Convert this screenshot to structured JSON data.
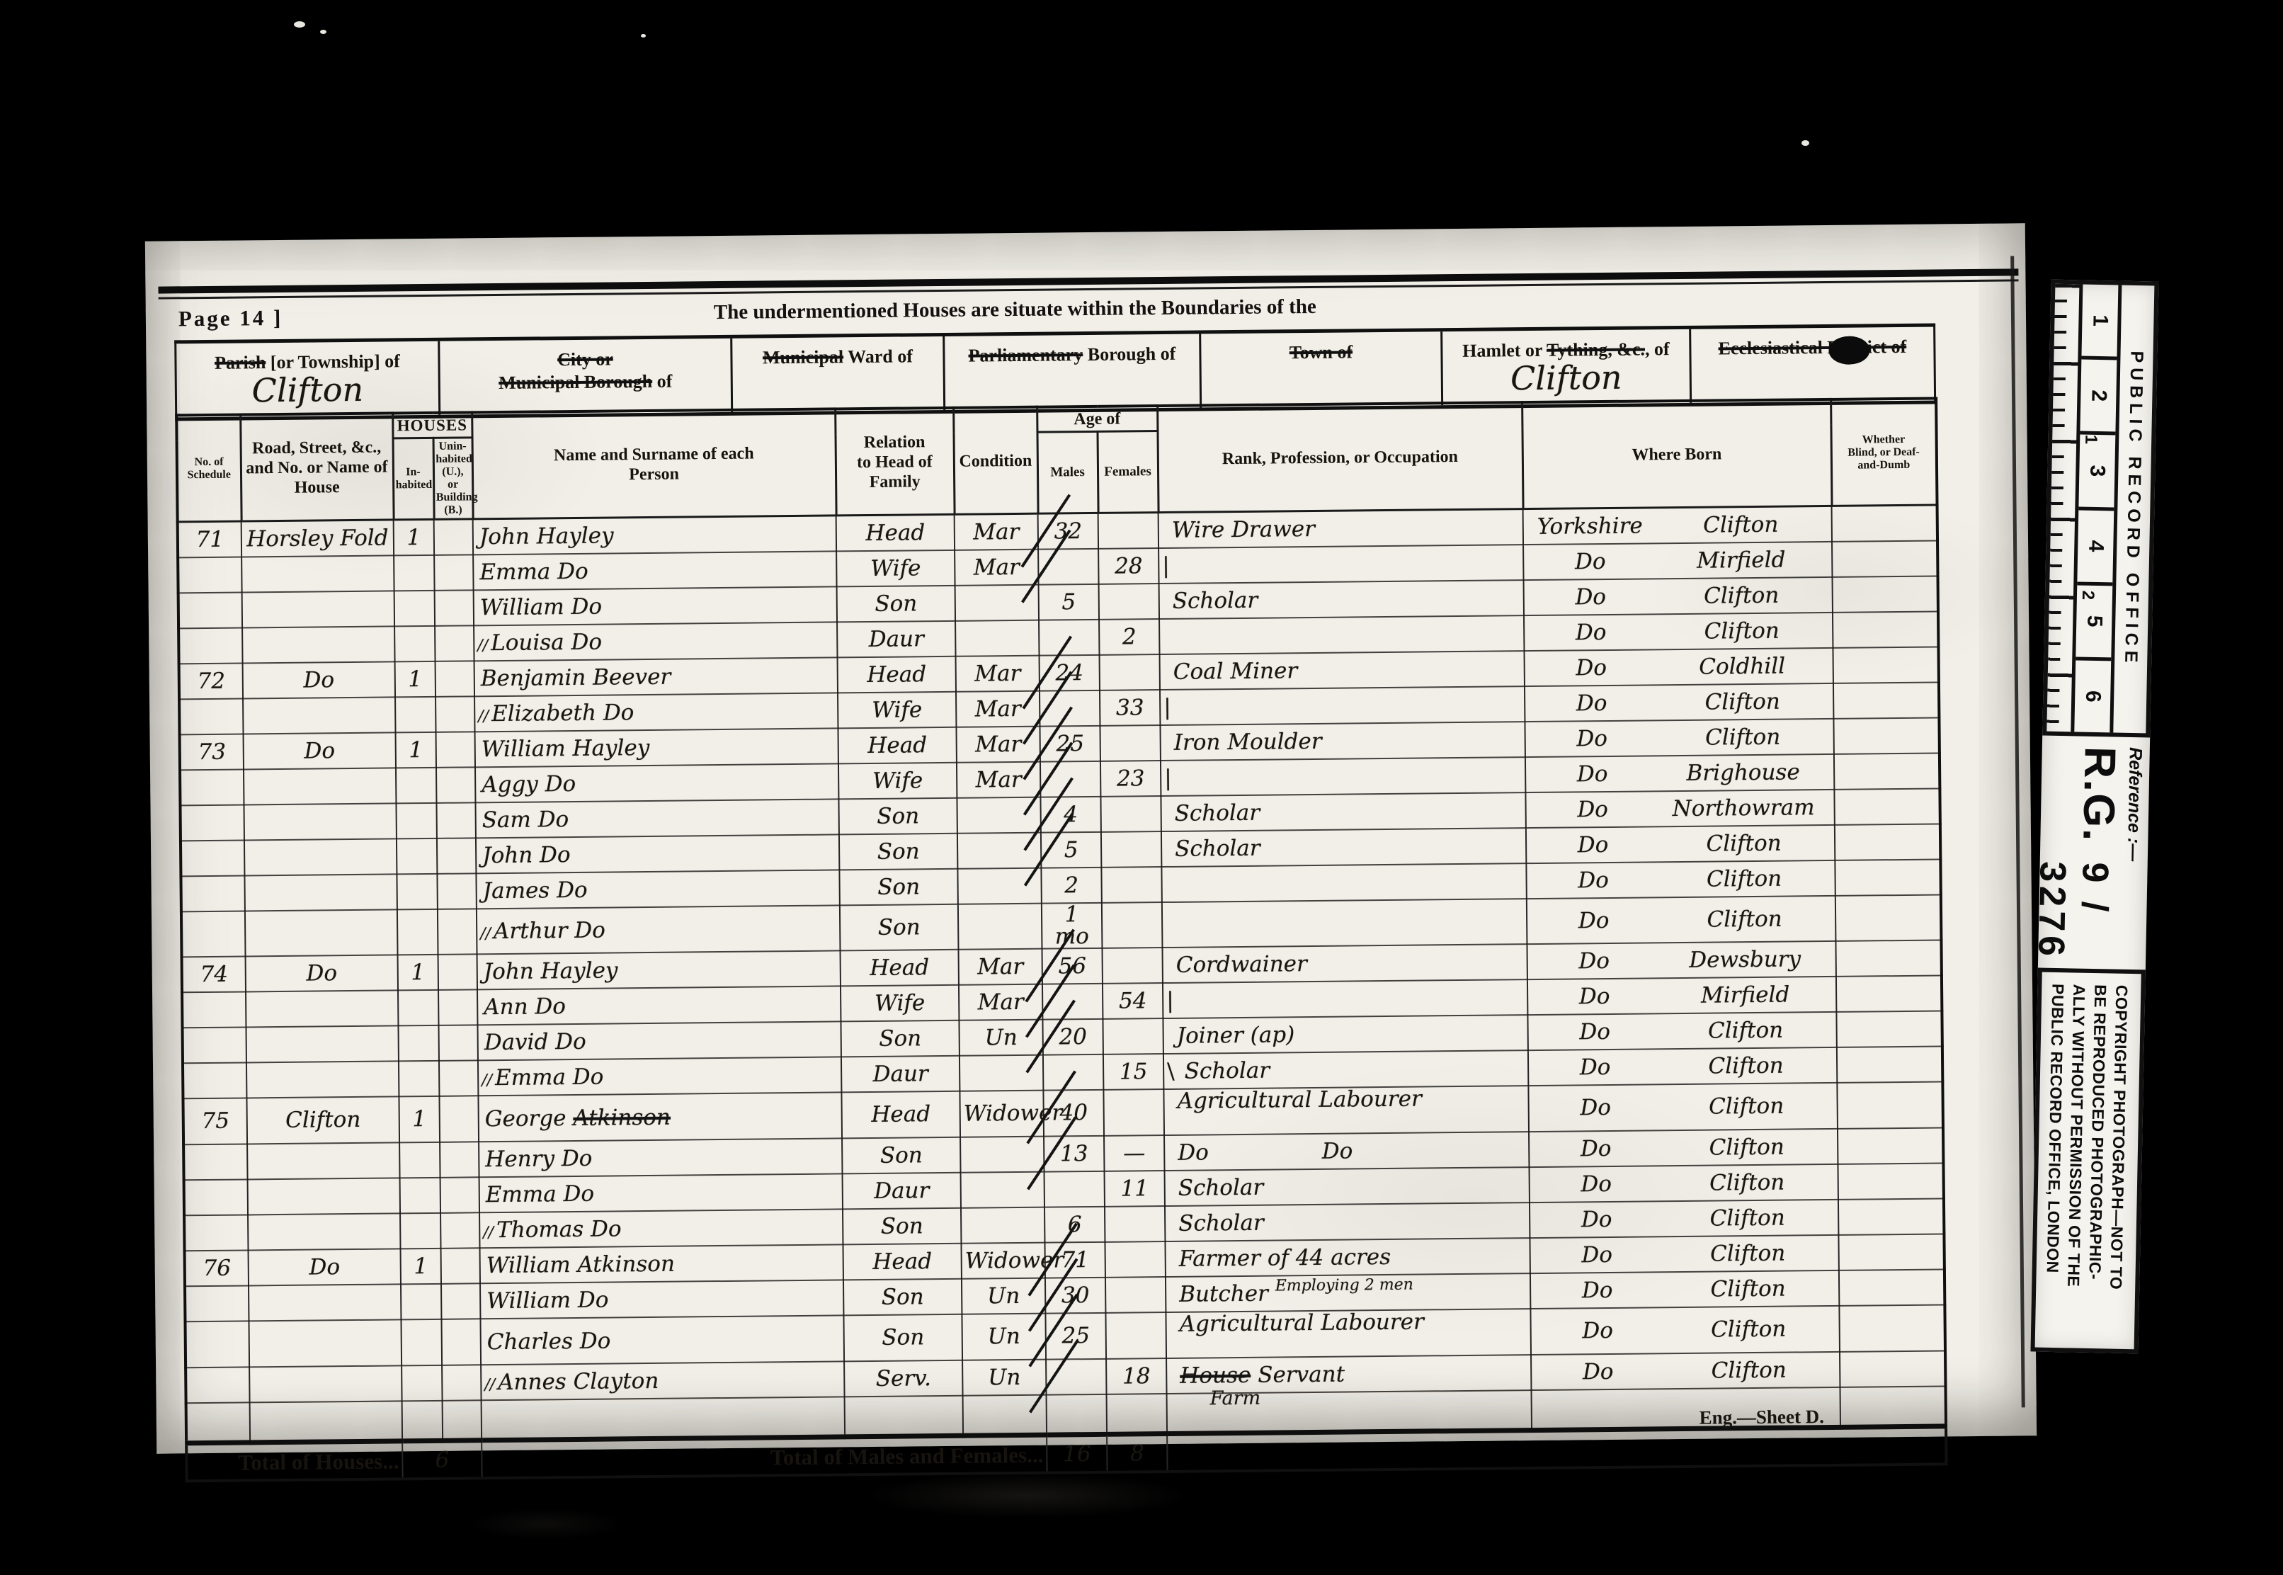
{
  "page": {
    "page_label": "Page 14 ]",
    "title": "The undermentioned Houses are situate within the Boundaries of the",
    "sheet_note": "Eng.—Sheet D.",
    "totals": {
      "houses_label": "Total of Houses...",
      "houses": "6",
      "mf_label": "Total of Males and Females...",
      "males": "16",
      "females": "8"
    }
  },
  "location_boxes": [
    {
      "label": "~Parish~ [or Township] of",
      "value": "Clifton"
    },
    {
      "label": "~City or~\n~Municipal Borough~ of",
      "value": ""
    },
    {
      "label": "~Municipal~ Ward of",
      "value": ""
    },
    {
      "label": "~Parliamentary~ Borough of",
      "value": ""
    },
    {
      "label": "~Town of~",
      "value": ""
    },
    {
      "label": "Hamlet or ~Tything, &c.~, of",
      "value": "Clifton"
    },
    {
      "label": "~Ecclesiastical District of~",
      "value": "",
      "blob": true
    }
  ],
  "table": {
    "columns": {
      "schedule": "No. of\nSchedule",
      "road": "Road, Street, &c.,\nand No. or Name of\nHouse",
      "houses": "HOUSES",
      "inhabited": "In-\nhabited",
      "uninhabited": "Unin-\nhabited\n(U.), or\nBuilding\n(B.)",
      "name": "Name and Surname of each\nPerson",
      "relation": "Relation\nto Head of\nFamily",
      "condition": "Condition",
      "age": "Age of",
      "males": "Males",
      "females": "Females",
      "occupation": "Rank, Profession, or Occupation",
      "born": "Where Born",
      "blind": "Whether\nBlind, or Deaf-\nand-Dumb"
    }
  },
  "rows": [
    {
      "schedule": "71",
      "road": "Horsley Fold",
      "inhabited": "1",
      "name": "John Hayley",
      "relation": "Head",
      "condition": "Mar",
      "age_m": "32",
      "occupation": "Wire Drawer",
      "born_county": "Yorkshire",
      "born_place": "Clifton",
      "slash": true
    },
    {
      "name": "Emma Do",
      "relation": "Wife",
      "condition": "Mar",
      "age_f": "28",
      "pre_mark": "|",
      "born_county": "Do",
      "born_place": "Mirfield",
      "slash": true
    },
    {
      "name": "William Do",
      "relation": "Son",
      "age_m": "5",
      "occupation": "Scholar",
      "born_county": "Do",
      "born_place": "Clifton"
    },
    {
      "end_mark": "//",
      "name": "Louisa Do",
      "relation": "Daur",
      "age_f": "2",
      "born_county": "Do",
      "born_place": "Clifton"
    },
    {
      "schedule": "72",
      "road": "Do",
      "inhabited": "1",
      "name": "Benjamin Beever",
      "relation": "Head",
      "condition": "Mar",
      "age_m": "24",
      "occupation": "Coal Miner",
      "born_county": "Do",
      "born_place": "Coldhill",
      "slash": true
    },
    {
      "end_mark": "//",
      "name": "Elizabeth Do",
      "relation": "Wife",
      "condition": "Mar",
      "age_f": "33",
      "pre_mark": "|",
      "born_county": "Do",
      "born_place": "Clifton",
      "slash": true
    },
    {
      "schedule": "73",
      "road": "Do",
      "inhabited": "1",
      "name": "William Hayley",
      "relation": "Head",
      "condition": "Mar",
      "age_m": "25",
      "occupation": "Iron Moulder",
      "born_county": "Do",
      "born_place": "Clifton",
      "slash": true
    },
    {
      "name": "Aggy Do",
      "relation": "Wife",
      "condition": "Mar",
      "age_f": "23",
      "pre_mark": "|",
      "born_county": "Do",
      "born_place": "Brighouse",
      "slash": true
    },
    {
      "name": "Sam Do",
      "relation": "Son",
      "age_m": "4",
      "occupation": "Scholar",
      "born_county": "Do",
      "born_place": "Northowram",
      "slash": true
    },
    {
      "name": "John Do",
      "relation": "Son",
      "age_m": "5",
      "occupation": "Scholar",
      "born_county": "Do",
      "born_place": "Clifton",
      "slash": true
    },
    {
      "name": "James Do",
      "relation": "Son",
      "age_m": "2",
      "born_county": "Do",
      "born_place": "Clifton"
    },
    {
      "end_mark": "//",
      "name": "Arthur Do",
      "relation": "Son",
      "age_m": "1 mo",
      "born_county": "Do",
      "born_place": "Clifton"
    },
    {
      "schedule": "74",
      "road": "Do",
      "inhabited": "1",
      "name": "John Hayley",
      "relation": "Head",
      "condition": "Mar",
      "age_m": "56",
      "occupation": "Cordwainer",
      "born_county": "Do",
      "born_place": "Dewsbury",
      "slash": true
    },
    {
      "name": "Ann Do",
      "relation": "Wife",
      "condition": "Mar",
      "age_f": "54",
      "pre_mark": "|",
      "born_county": "Do",
      "born_place": "Mirfield",
      "slash": true
    },
    {
      "name": "David Do",
      "relation": "Son",
      "condition": "Un",
      "age_m": "20",
      "occupation": "Joiner (ap)",
      "born_county": "Do",
      "born_place": "Clifton",
      "slash": true
    },
    {
      "end_mark": "//",
      "name": "Emma Do",
      "relation": "Daur",
      "age_f": "15",
      "pre_mark": "\\",
      "occupation": "Scholar",
      "born_county": "Do",
      "born_place": "Clifton"
    },
    {
      "schedule": "75",
      "road": "Clifton",
      "inhabited": "1",
      "name": "George ",
      "name_struck": "Atkinson",
      "relation": "Head",
      "condition": "Widower",
      "age_m": "40",
      "occupation": "Agricultural Labourer",
      "born_county": "Do",
      "born_place": "Clifton",
      "slash": true
    },
    {
      "name": "Henry Do",
      "relation": "Son",
      "age_m": "13",
      "age_f": "—",
      "occupation": "Do",
      "occ_right": "Do",
      "born_county": "Do",
      "born_place": "Clifton",
      "slash": true
    },
    {
      "name": "Emma Do",
      "relation": "Daur",
      "age_f": "11",
      "occupation": "Scholar",
      "born_county": "Do",
      "born_place": "Clifton"
    },
    {
      "end_mark": "//",
      "name": "Thomas Do",
      "relation": "Son",
      "age_m": "6",
      "occupation": "Scholar",
      "born_county": "Do",
      "born_place": "Clifton"
    },
    {
      "schedule": "76",
      "road": "Do",
      "inhabited": "1",
      "name": "William Atkinson",
      "relation": "Head",
      "condition": "Widower",
      "age_m": "71",
      "occupation": "Farmer of 44 acres",
      "born_county": "Do",
      "born_place": "Clifton",
      "slash": true
    },
    {
      "name": "William Do",
      "relation": "Son",
      "condition": "Un",
      "age_m": "30",
      "occupation": "Butcher",
      "occ_super": "Employing 2 men",
      "born_county": "Do",
      "born_place": "Clifton",
      "slash": true
    },
    {
      "name": "Charles Do",
      "relation": "Son",
      "condition": "Un",
      "age_m": "25",
      "occupation": "Agricultural Labourer",
      "born_county": "Do",
      "born_place": "Clifton",
      "slash": true
    },
    {
      "end_mark": "//",
      "name": "Annes Clayton",
      "relation": "Serv.",
      "condition": "Un",
      "age_f": "18",
      "occ_struck": "House",
      "occupation": "Servant",
      "occ_below": "Farm",
      "born_county": "Do",
      "born_place": "Clifton",
      "slash": true
    }
  ],
  "strip": {
    "office": "PUBLIC RECORD OFFICE",
    "numbers": [
      "1",
      "2",
      "3",
      "4",
      "5",
      "6"
    ],
    "cm_labels": [
      "1",
      "2"
    ],
    "reference": "Reference :—",
    "rg": "R.G.",
    "number": "9 / 3276",
    "copyright": "COPYRIGHT PHOTOGRAPH—NOT TO\nBE REPRODUCED PHOTOGRAPHIC-\nALLY WITHOUT PERMISSION OF THE\nPUBLIC RECORD OFFICE, LONDON"
  }
}
